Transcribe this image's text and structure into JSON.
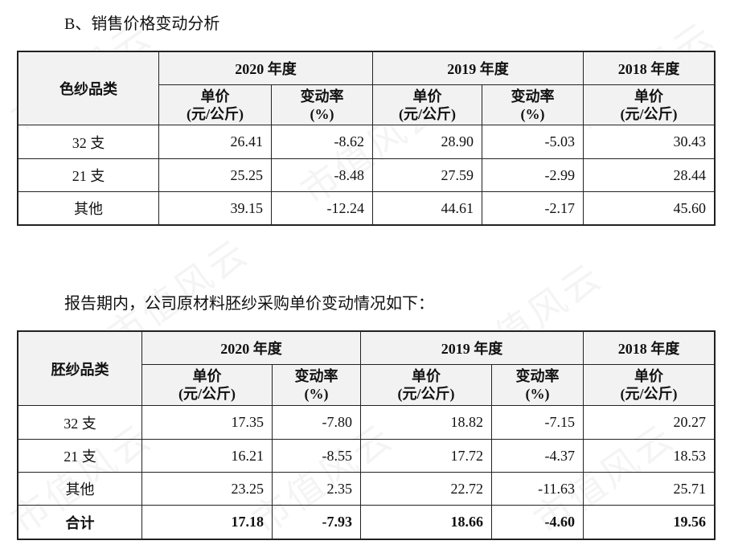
{
  "sales_heading": "B、销售价格变动分析",
  "table1": {
    "corner": "色纱品类",
    "years": [
      "2020 年度",
      "2019 年度",
      "2018 年度"
    ],
    "unit_price": [
      "单价",
      "(元/公斤)"
    ],
    "change_rate": [
      "变动率",
      "(%)"
    ],
    "rows": [
      {
        "name": "32 支",
        "p2020": "26.41",
        "c2020": "-8.62",
        "p2019": "28.90",
        "c2019": "-5.03",
        "p2018": "30.43"
      },
      {
        "name": "21 支",
        "p2020": "25.25",
        "c2020": "-8.48",
        "p2019": "27.59",
        "c2019": "-2.99",
        "p2018": "28.44"
      },
      {
        "name": "其他",
        "p2020": "39.15",
        "c2020": "-12.24",
        "p2019": "44.61",
        "c2019": "-2.17",
        "p2018": "45.60"
      }
    ]
  },
  "purchase_heading": "报告期内，公司原材料胚纱采购单价变动情况如下：",
  "table2": {
    "corner": "胚纱品类",
    "years": [
      "2020 年度",
      "2019 年度",
      "2018 年度"
    ],
    "unit_price": [
      "单价",
      "(元/公斤)"
    ],
    "change_rate": [
      "变动率",
      "(%)"
    ],
    "rows": [
      {
        "name": "32 支",
        "p2020": "17.35",
        "c2020": "-7.80",
        "p2019": "18.82",
        "c2019": "-7.15",
        "p2018": "20.27"
      },
      {
        "name": "21 支",
        "p2020": "16.21",
        "c2020": "-8.55",
        "p2019": "17.72",
        "c2019": "-4.37",
        "p2018": "18.53"
      },
      {
        "name": "其他",
        "p2020": "23.25",
        "c2020": "2.35",
        "p2019": "22.72",
        "c2019": "-11.63",
        "p2018": "25.71"
      }
    ],
    "total": {
      "name": "合计",
      "p2020": "17.18",
      "c2020": "-7.93",
      "p2019": "18.66",
      "c2019": "-4.60",
      "p2018": "19.56"
    }
  },
  "watermark": "市值风云"
}
